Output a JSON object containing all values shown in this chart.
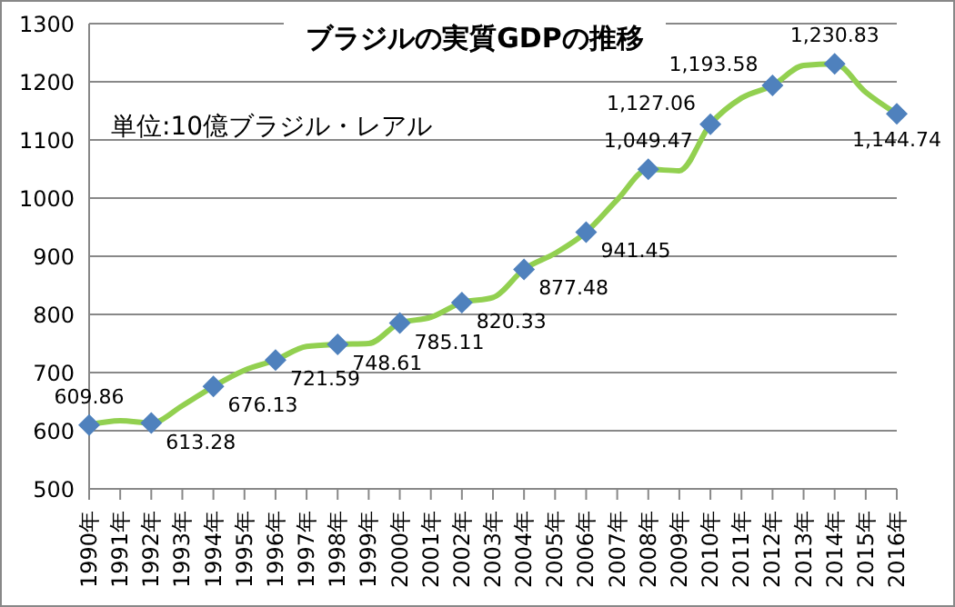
{
  "chart_data": {
    "type": "line",
    "title": "ブラジルの実質GDPの推移",
    "annotations": [
      "単位:10億ブラジル・レアル"
    ],
    "categories": [
      "1990年",
      "1991年",
      "1992年",
      "1993年",
      "1994年",
      "1995年",
      "1996年",
      "1997年",
      "1998年",
      "1999年",
      "2000年",
      "2001年",
      "2002年",
      "2003年",
      "2004年",
      "2005年",
      "2006年",
      "2007年",
      "2008年",
      "2009年",
      "2010年",
      "2011年",
      "2012年",
      "2013年",
      "2014年",
      "2015年",
      "2016年"
    ],
    "series": [
      {
        "color": "#92d050",
        "values": [
          609.86,
          617,
          613.28,
          643,
          676.13,
          704,
          721.59,
          745,
          748.61,
          750,
          785.11,
          795,
          820.33,
          829,
          877.48,
          905,
          941.45,
          997,
          1049.47,
          1047,
          1127.06,
          1172,
          1193.58,
          1228,
          1230.83,
          1182,
          1144.74
        ],
        "value_labels": [
          "609.86",
          null,
          "613.28",
          null,
          "676.13",
          null,
          "721.59",
          null,
          "748.61",
          null,
          "785.11",
          null,
          "820.33",
          null,
          "877.48",
          null,
          "941.45",
          null,
          "1,049.47",
          null,
          "1,127.06",
          null,
          "1,193.58",
          null,
          "1,230.83",
          null,
          "1,144.74"
        ]
      }
    ],
    "marker": "diamond",
    "ylim": [
      500,
      1300
    ],
    "yticks": [
      500,
      600,
      700,
      800,
      900,
      1000,
      1100,
      1200,
      1300
    ],
    "grid": "y"
  }
}
